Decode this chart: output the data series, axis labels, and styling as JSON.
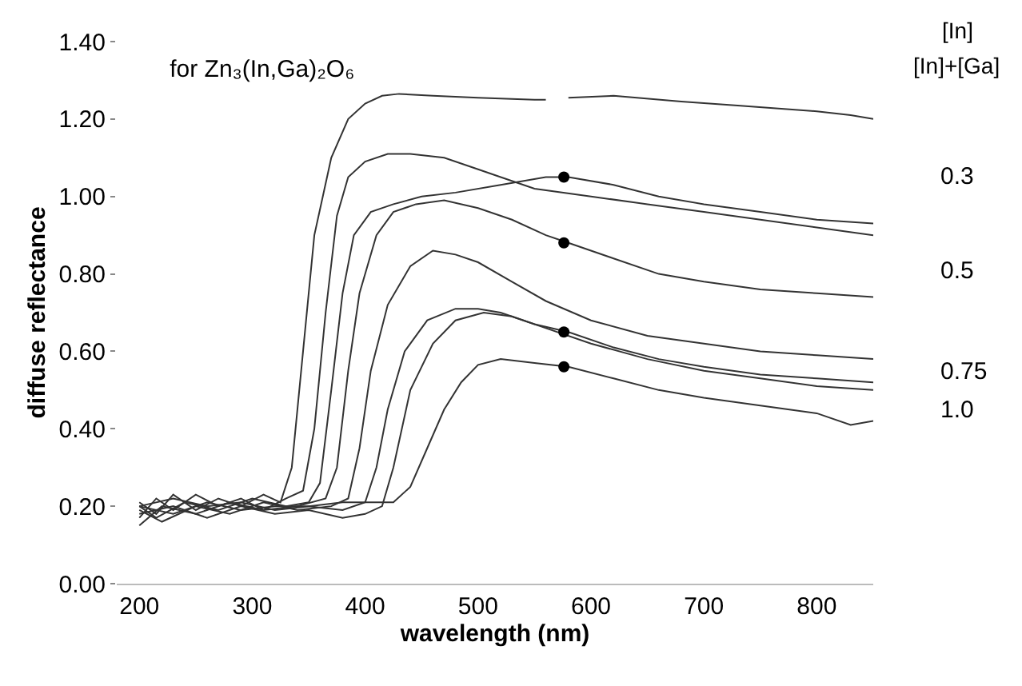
{
  "chart_data": {
    "type": "line",
    "title": "for Zn₃(In,Ga)₂O₆",
    "xlabel": "wavelength (nm)",
    "ylabel": "diffuse reflectance",
    "xlim": [
      180,
      850
    ],
    "xticks": [
      200,
      300,
      400,
      500,
      600,
      700,
      800
    ],
    "ylim": [
      0,
      1.4
    ],
    "yticks": [
      {
        "value": 0,
        "label": "0.00"
      },
      {
        "value": 0.2,
        "label": "0.20"
      },
      {
        "value": 0.4,
        "label": "0.40"
      },
      {
        "value": 0.6,
        "label": "0.60"
      },
      {
        "value": 0.8,
        "label": "0.80"
      },
      {
        "value": 1.0,
        "label": "1.00"
      },
      {
        "value": 1.2,
        "label": "1.20"
      },
      {
        "value": 1.4,
        "label": "1.40"
      }
    ],
    "grid": false,
    "marker": "none",
    "line_style": "solid",
    "annotations": [
      "[In]",
      "[In]+[Ga]",
      "0.3",
      "0.5",
      "0.75",
      "1.0"
    ],
    "series": [
      {
        "color": "#333333",
        "x": [
          200,
          215,
          230,
          250,
          270,
          290,
          310,
          325,
          335,
          345,
          355,
          370,
          385,
          400,
          415,
          430,
          460,
          500,
          550,
          560,
          570,
          580,
          620,
          680,
          730,
          800,
          830,
          850
        ],
        "values": [
          0.21,
          0.18,
          0.23,
          0.19,
          0.22,
          0.2,
          0.23,
          0.21,
          0.3,
          0.6,
          0.9,
          1.1,
          1.2,
          1.24,
          1.26,
          1.265,
          1.26,
          1.255,
          1.25,
          1.25,
          null,
          1.255,
          1.26,
          1.245,
          1.235,
          1.22,
          1.21,
          1.2
        ]
      },
      {
        "color": "#333333",
        "x": [
          200,
          215,
          230,
          250,
          270,
          290,
          310,
          330,
          345,
          355,
          365,
          375,
          385,
          400,
          420,
          440,
          470,
          500,
          520,
          550,
          600,
          650,
          700,
          750,
          800,
          850
        ],
        "values": [
          0.17,
          0.22,
          0.19,
          0.23,
          0.2,
          0.22,
          0.19,
          0.22,
          0.24,
          0.4,
          0.7,
          0.95,
          1.05,
          1.09,
          1.11,
          1.11,
          1.1,
          1.07,
          1.05,
          1.02,
          1.0,
          0.98,
          0.96,
          0.94,
          0.92,
          0.9
        ]
      },
      {
        "color": "#333333",
        "x": [
          200,
          215,
          240,
          270,
          300,
          330,
          350,
          360,
          370,
          380,
          390,
          405,
          425,
          450,
          480,
          520,
          560,
          580,
          620,
          660,
          700,
          750,
          800,
          850
        ],
        "values": [
          0.2,
          0.17,
          0.21,
          0.19,
          0.22,
          0.2,
          0.21,
          0.26,
          0.5,
          0.75,
          0.9,
          0.96,
          0.98,
          1.0,
          1.01,
          1.03,
          1.05,
          1.05,
          1.03,
          1.0,
          0.98,
          0.96,
          0.94,
          0.93
        ]
      },
      {
        "color": "#333333",
        "x": [
          200,
          220,
          250,
          280,
          310,
          340,
          365,
          375,
          385,
          395,
          410,
          425,
          445,
          470,
          500,
          530,
          560,
          580,
          620,
          660,
          700,
          750,
          800,
          850
        ],
        "values": [
          0.15,
          0.2,
          0.18,
          0.21,
          0.19,
          0.2,
          0.22,
          0.3,
          0.55,
          0.75,
          0.9,
          0.96,
          0.98,
          0.99,
          0.97,
          0.94,
          0.9,
          0.88,
          0.84,
          0.8,
          0.78,
          0.76,
          0.75,
          0.74
        ]
      },
      {
        "color": "#333333",
        "x": [
          200,
          220,
          250,
          280,
          310,
          340,
          370,
          385,
          395,
          405,
          420,
          440,
          460,
          480,
          500,
          530,
          560,
          600,
          650,
          700,
          750,
          800,
          850
        ],
        "values": [
          0.19,
          0.16,
          0.2,
          0.18,
          0.21,
          0.19,
          0.2,
          0.22,
          0.35,
          0.55,
          0.72,
          0.82,
          0.86,
          0.85,
          0.83,
          0.78,
          0.73,
          0.68,
          0.64,
          0.62,
          0.6,
          0.59,
          0.58
        ]
      },
      {
        "color": "#333333",
        "x": [
          200,
          230,
          260,
          290,
          320,
          350,
          380,
          400,
          410,
          420,
          435,
          455,
          480,
          500,
          520,
          550,
          580,
          620,
          660,
          700,
          750,
          800,
          850
        ],
        "values": [
          0.2,
          0.18,
          0.21,
          0.19,
          0.2,
          0.2,
          0.19,
          0.21,
          0.3,
          0.45,
          0.6,
          0.68,
          0.71,
          0.71,
          0.7,
          0.67,
          0.65,
          0.61,
          0.58,
          0.56,
          0.54,
          0.53,
          0.52
        ]
      },
      {
        "color": "#333333",
        "x": [
          200,
          230,
          260,
          290,
          320,
          350,
          380,
          400,
          415,
          425,
          440,
          460,
          480,
          505,
          530,
          560,
          600,
          650,
          700,
          750,
          800,
          850
        ],
        "values": [
          0.18,
          0.2,
          0.17,
          0.2,
          0.18,
          0.19,
          0.17,
          0.18,
          0.2,
          0.3,
          0.5,
          0.62,
          0.68,
          0.7,
          0.69,
          0.66,
          0.62,
          0.58,
          0.55,
          0.53,
          0.51,
          0.5
        ]
      },
      {
        "color": "#333333",
        "x": [
          200,
          230,
          260,
          290,
          320,
          350,
          380,
          410,
          425,
          440,
          455,
          470,
          485,
          500,
          520,
          550,
          580,
          620,
          660,
          700,
          750,
          800,
          830,
          850
        ],
        "values": [
          0.2,
          0.22,
          0.2,
          0.21,
          0.19,
          0.2,
          0.21,
          0.21,
          0.21,
          0.25,
          0.35,
          0.45,
          0.52,
          0.565,
          0.58,
          0.57,
          0.56,
          0.53,
          0.5,
          0.48,
          0.46,
          0.44,
          0.41,
          0.42
        ]
      },
      {
        "type": "scatter",
        "marker": "circle",
        "color": "#000000",
        "x": [
          576,
          576,
          576,
          576
        ],
        "values": [
          1.05,
          0.88,
          0.65,
          0.56
        ]
      }
    ]
  }
}
